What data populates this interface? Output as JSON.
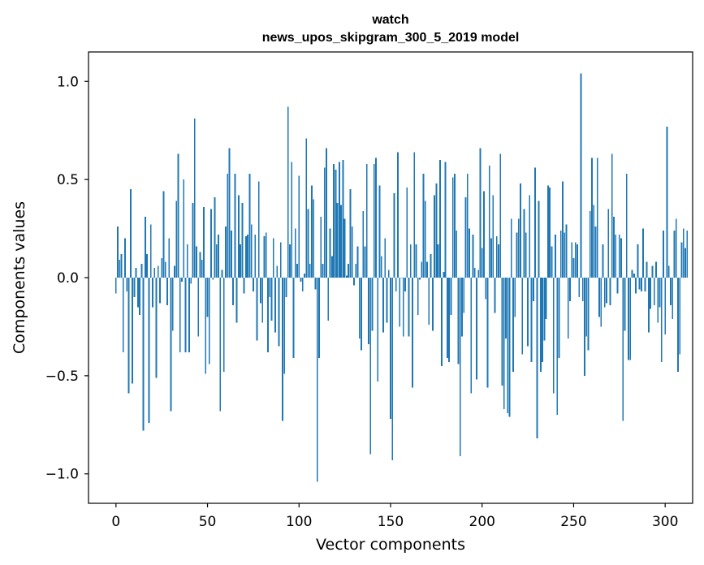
{
  "chart_data": {
    "type": "bar",
    "title_line1": "watch",
    "title_line2": "news_upos_skipgram_300_5_2019 model",
    "xlabel": "Vector components",
    "ylabel": "Components values",
    "xlim": [
      -15,
      315
    ],
    "ylim": [
      -1.15,
      1.15
    ],
    "xticks": [
      0,
      50,
      100,
      150,
      200,
      250,
      300
    ],
    "xtick_labels": [
      "0",
      "50",
      "100",
      "150",
      "200",
      "250",
      "300"
    ],
    "yticks": [
      -1.0,
      -0.5,
      0.0,
      0.5,
      1.0
    ],
    "ytick_labels": [
      "−1.0",
      "−0.5",
      "0.0",
      "0.5",
      "1.0"
    ],
    "bar_color": "#1f77b4",
    "values": [
      -0.08,
      0.26,
      0.09,
      0.12,
      -0.38,
      0.2,
      -0.07,
      -0.59,
      0.45,
      -0.54,
      -0.1,
      0.05,
      -0.15,
      -0.19,
      0.07,
      -0.78,
      0.31,
      0.12,
      -0.74,
      0.27,
      -0.15,
      0.05,
      -0.51,
      0.06,
      -0.13,
      0.1,
      0.44,
      0.08,
      -0.14,
      0.2,
      -0.68,
      -0.27,
      0.06,
      0.39,
      0.63,
      -0.38,
      -0.02,
      0.5,
      -0.38,
      0.17,
      -0.38,
      -0.03,
      0.38,
      0.81,
      0.16,
      -0.3,
      0.13,
      0.09,
      0.36,
      -0.49,
      -0.2,
      -0.44,
      0.35,
      -0.01,
      0.41,
      0.17,
      0.22,
      -0.68,
      0.04,
      -0.48,
      0.26,
      0.53,
      0.66,
      0.24,
      -0.14,
      0.53,
      -0.23,
      0.42,
      0.17,
      0.38,
      -0.08,
      0.21,
      0.22,
      0.53,
      0.27,
      -0.07,
      0.22,
      -0.32,
      0.49,
      -0.13,
      -0.23,
      0.21,
      0.23,
      -0.38,
      -0.1,
      -0.22,
      0.2,
      -0.28,
      0.06,
      -0.35,
      0.18,
      -0.73,
      -0.49,
      -0.1,
      0.87,
      0.17,
      0.59,
      -0.41,
      0.25,
      0.07,
      0.52,
      -0.02,
      -0.07,
      0.02,
      0.71,
      0.35,
      0.07,
      0.47,
      0.4,
      -0.06,
      -1.04,
      -0.41,
      0.31,
      0.07,
      0.56,
      0.66,
      -0.22,
      0.25,
      0.11,
      0.58,
      0.55,
      0.38,
      0.59,
      0.37,
      0.6,
      0.3,
      0.01,
      0.07,
      0.45,
      0.26,
      -0.04,
      0.07,
      0.16,
      -0.31,
      -0.37,
      0.34,
      0.16,
      0.58,
      -0.34,
      -0.9,
      -0.27,
      0.58,
      0.61,
      -0.53,
      0.47,
      0.11,
      -0.28,
      0.2,
      -0.23,
      0.04,
      -0.72,
      -0.93,
      0.43,
      -0.07,
      0.64,
      -0.25,
      0.0,
      -0.3,
      -0.07,
      0.46,
      -0.3,
      0.17,
      -0.56,
      0.64,
      0.17,
      -0.19,
      -0.01,
      0.08,
      0.53,
      0.39,
      0.08,
      -0.24,
      0.12,
      -0.27,
      0.42,
      0.48,
      0.17,
      0.6,
      -0.45,
      0.03,
      0.59,
      -0.41,
      -0.43,
      -0.19,
      0.51,
      0.53,
      0.24,
      -0.44,
      -0.91,
      -0.3,
      -0.18,
      0.41,
      0.53,
      0.25,
      -0.59,
      0.22,
      0.05,
      -0.52,
      0.04,
      0.66,
      0.15,
      0.44,
      -0.11,
      -0.56,
      0.57,
      0.2,
      0.42,
      -0.18,
      0.21,
      0.17,
      0.63,
      -0.55,
      -0.67,
      -0.31,
      -0.69,
      -0.71,
      0.3,
      -0.48,
      -0.2,
      0.23,
      0.3,
      0.48,
      -0.39,
      0.35,
      0.23,
      -0.35,
      0.42,
      -0.43,
      -0.12,
      0.56,
      -0.82,
      0.39,
      -0.48,
      -0.43,
      -0.32,
      -0.21,
      0.47,
      0.46,
      0.16,
      -0.59,
      0.22,
      -0.7,
      -0.41,
      0.24,
      0.49,
      0.23,
      0.27,
      -0.31,
      -0.12,
      0.18,
      0.1,
      0.18,
      0.17,
      -0.1,
      1.04,
      -0.12,
      -0.5,
      -0.3,
      -0.37,
      0.34,
      0.61,
      0.37,
      0.26,
      0.61,
      -0.2,
      -0.25,
      0.17,
      -0.15,
      -0.13,
      0.35,
      -0.14,
      0.63,
      0.31,
      0.22,
      -0.08,
      0.22,
      0.2,
      -0.73,
      -0.27,
      0.53,
      -0.42,
      -0.42,
      0.04,
      0.02,
      -0.08,
      0.17,
      -0.06,
      -0.07,
      0.25,
      -0.07,
      0.08,
      -0.28,
      -0.16,
      0.06,
      -0.14,
      0.08,
      -0.23,
      -0.15,
      -0.43,
      0.24,
      -0.29,
      0.77,
      0.06,
      -0.14,
      -0.21,
      0.24,
      0.3,
      -0.48,
      -0.39,
      0.18,
      0.25,
      0.15,
      0.24
    ]
  }
}
